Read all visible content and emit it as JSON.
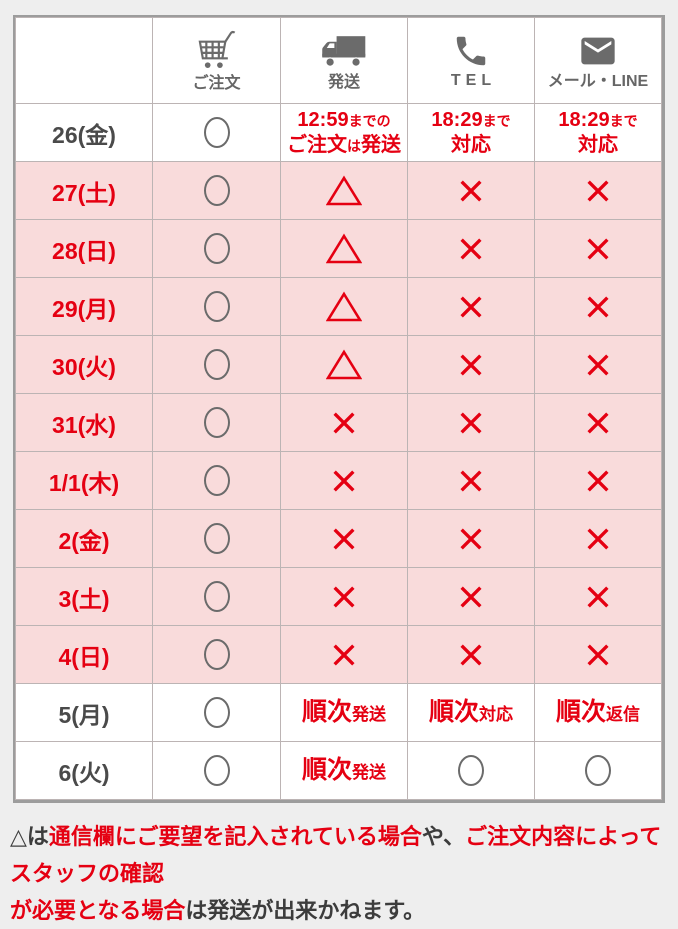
{
  "colors": {
    "red": "#e50012",
    "gray": "#6b6b6b",
    "pink_row": "#f9dbdb",
    "dark_text": "#4a4a4a",
    "page_background": "#eeeeee"
  },
  "header": {
    "columns": [
      {
        "icon": "cart-icon",
        "label": "ご注文"
      },
      {
        "icon": "truck-icon",
        "label": "発送"
      },
      {
        "icon": "phone-icon",
        "label": "TEL"
      },
      {
        "icon": "mail-icon",
        "label": "メール・LINE"
      }
    ]
  },
  "rows": [
    {
      "date": "26(金)",
      "date_style": "dark",
      "bg": "white",
      "cells": [
        {
          "type": "circle"
        },
        {
          "type": "text",
          "lines": [
            [
              {
                "t": "12:59",
                "s": "b"
              },
              {
                "t": "までの",
                "s": "s"
              }
            ],
            [
              {
                "t": "ご注文",
                "s": "b"
              },
              {
                "t": "は",
                "s": "s"
              },
              {
                "t": "発送",
                "s": "b"
              }
            ]
          ]
        },
        {
          "type": "text",
          "lines": [
            [
              {
                "t": "18:29",
                "s": "b"
              },
              {
                "t": "まで",
                "s": "s"
              }
            ],
            [
              {
                "t": "対応",
                "s": "b"
              }
            ]
          ]
        },
        {
          "type": "text",
          "lines": [
            [
              {
                "t": "18:29",
                "s": "b"
              },
              {
                "t": "まで",
                "s": "s"
              }
            ],
            [
              {
                "t": "対応",
                "s": "b"
              }
            ]
          ]
        }
      ]
    },
    {
      "date": "27(土)",
      "date_style": "red",
      "bg": "pink",
      "cells": [
        {
          "type": "circle"
        },
        {
          "type": "triangle"
        },
        {
          "type": "cross"
        },
        {
          "type": "cross"
        }
      ]
    },
    {
      "date": "28(日)",
      "date_style": "red",
      "bg": "pink",
      "cells": [
        {
          "type": "circle"
        },
        {
          "type": "triangle"
        },
        {
          "type": "cross"
        },
        {
          "type": "cross"
        }
      ]
    },
    {
      "date": "29(月)",
      "date_style": "red",
      "bg": "pink",
      "cells": [
        {
          "type": "circle"
        },
        {
          "type": "triangle"
        },
        {
          "type": "cross"
        },
        {
          "type": "cross"
        }
      ]
    },
    {
      "date": "30(火)",
      "date_style": "red",
      "bg": "pink",
      "cells": [
        {
          "type": "circle"
        },
        {
          "type": "triangle"
        },
        {
          "type": "cross"
        },
        {
          "type": "cross"
        }
      ]
    },
    {
      "date": "31(水)",
      "date_style": "red",
      "bg": "pink",
      "cells": [
        {
          "type": "circle"
        },
        {
          "type": "cross"
        },
        {
          "type": "cross"
        },
        {
          "type": "cross"
        }
      ]
    },
    {
      "date": "1/1(木)",
      "date_style": "red",
      "bg": "pink",
      "cells": [
        {
          "type": "circle"
        },
        {
          "type": "cross"
        },
        {
          "type": "cross"
        },
        {
          "type": "cross"
        }
      ]
    },
    {
      "date": "2(金)",
      "date_style": "red",
      "bg": "pink",
      "cells": [
        {
          "type": "circle"
        },
        {
          "type": "cross"
        },
        {
          "type": "cross"
        },
        {
          "type": "cross"
        }
      ]
    },
    {
      "date": "3(土)",
      "date_style": "red",
      "bg": "pink",
      "cells": [
        {
          "type": "circle"
        },
        {
          "type": "cross"
        },
        {
          "type": "cross"
        },
        {
          "type": "cross"
        }
      ]
    },
    {
      "date": "4(日)",
      "date_style": "red",
      "bg": "pink",
      "cells": [
        {
          "type": "circle"
        },
        {
          "type": "cross"
        },
        {
          "type": "cross"
        },
        {
          "type": "cross"
        }
      ]
    },
    {
      "date": "5(月)",
      "date_style": "dark",
      "bg": "white",
      "cells": [
        {
          "type": "circle"
        },
        {
          "type": "text",
          "size": "lg",
          "lines": [
            [
              {
                "t": "順次",
                "s": "b"
              },
              {
                "t": "発送",
                "s": "s"
              }
            ]
          ]
        },
        {
          "type": "text",
          "size": "lg",
          "lines": [
            [
              {
                "t": "順次",
                "s": "b"
              },
              {
                "t": "対応",
                "s": "s"
              }
            ]
          ]
        },
        {
          "type": "text",
          "size": "lg",
          "lines": [
            [
              {
                "t": "順次",
                "s": "b"
              },
              {
                "t": "返信",
                "s": "s"
              }
            ]
          ]
        }
      ]
    },
    {
      "date": "6(火)",
      "date_style": "dark",
      "bg": "white",
      "cells": [
        {
          "type": "circle"
        },
        {
          "type": "text",
          "size": "lg",
          "lines": [
            [
              {
                "t": "順次",
                "s": "b"
              },
              {
                "t": "発送",
                "s": "s"
              }
            ]
          ]
        },
        {
          "type": "circle"
        },
        {
          "type": "circle"
        }
      ]
    }
  ],
  "footer": {
    "lines": [
      [
        {
          "t": "△は",
          "c": "dark"
        },
        {
          "t": "通信欄にご要望を記入されている場合",
          "c": "red"
        },
        {
          "t": "や、",
          "c": "dark"
        },
        {
          "t": "ご注文内容によってスタッフの確認",
          "c": "red"
        }
      ],
      [
        {
          "t": "が必要となる場合",
          "c": "red"
        },
        {
          "t": "は",
          "c": "dark"
        },
        {
          "t": "発送が出来かねます。",
          "c": "dark"
        }
      ]
    ]
  }
}
